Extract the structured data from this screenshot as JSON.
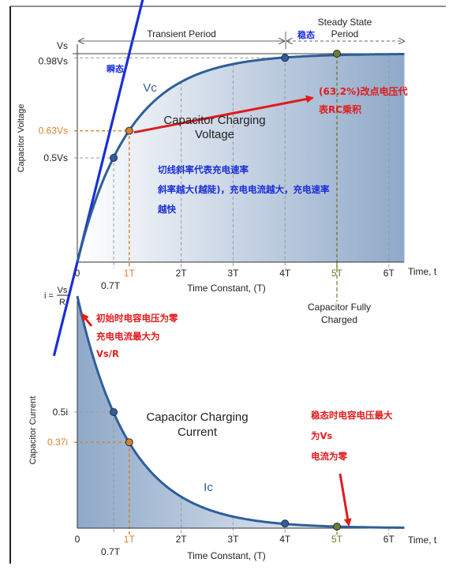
{
  "colors": {
    "curve": "#2d5f9a",
    "tangent": "#1a2fd6",
    "arrow_red": "#e11b1b",
    "note_red": "#e11b1b",
    "note_blue": "#1a2fd6",
    "orange": "#d9822b",
    "olive": "#6f7d2c",
    "grid": "#9a9a9a",
    "fill_light": "#ffffff",
    "fill_dark": "#8fa9c9"
  },
  "chart_data": [
    {
      "type": "line",
      "title": "Capacitor Charging Voltage",
      "title_line1": "Capacitor Charging",
      "title_line2": "Voltage",
      "xlabel": "Time Constant, (T)",
      "ylabel": "Capacitor Voltage",
      "x_axis_end_label": "Time, t",
      "xlim": [
        0,
        6.2
      ],
      "ylim": [
        0,
        1.0
      ],
      "x_ticks": [
        {
          "x": 0,
          "label": "0"
        },
        {
          "x": 1,
          "label": "1T",
          "highlight": "orange"
        },
        {
          "x": 2,
          "label": "2T"
        },
        {
          "x": 3,
          "label": "3T"
        },
        {
          "x": 4,
          "label": "4T"
        },
        {
          "x": 5,
          "label": "5T",
          "highlight": "olive"
        },
        {
          "x": 6,
          "label": "6T"
        }
      ],
      "extra_x_label": {
        "x": 0.7,
        "label": "0.7T"
      },
      "y_ticks": [
        {
          "y": 1.0,
          "label": "Vs"
        },
        {
          "y": 0.98,
          "label": "0.98Vs"
        },
        {
          "y": 0.63,
          "label": "0.63Vs",
          "highlight": "orange"
        },
        {
          "y": 0.5,
          "label": "0.5Vs"
        }
      ],
      "series": [
        {
          "name": "Vc",
          "function": "1 - exp(-x)"
        }
      ],
      "tangent": {
        "slope": 1,
        "intercept": 0
      },
      "points": [
        {
          "x": 0.7,
          "y": 0.5,
          "color": "#2d5f9a"
        },
        {
          "x": 1,
          "y": 0.63,
          "color": "#d9822b"
        },
        {
          "x": 4,
          "y": 0.98,
          "color": "#2d5f9a"
        },
        {
          "x": 5,
          "y": 1.0,
          "color": "#6f7d2c"
        }
      ],
      "regions": {
        "transient": "Transient Period",
        "steady_line1": "Steady State",
        "steady_line2": "Period",
        "steady_cn": "稳态"
      },
      "annotations": {
        "transient_cn": "瞬态",
        "arrow_note_line1": "(63.2%)改点电压代",
        "arrow_note_line2": "表RC乘积",
        "slope_note_line1": "切线斜率代表充电速率",
        "slope_note_line2": "斜率越大(越陡)，充电电流越大，充电速率",
        "slope_note_line3": "越快",
        "fully_charged_line1": "Capacitor Fully",
        "fully_charged_line2": "Charged"
      }
    },
    {
      "type": "line",
      "title": "Capacitor Charging Current",
      "title_line1": "Capacitor Charging",
      "title_line2": "Current",
      "xlabel": "Time Constant, (T)",
      "ylabel": "Capacitor Current",
      "x_axis_end_label": "Time, t",
      "xlim": [
        0,
        6.2
      ],
      "ylim": [
        0,
        1.0
      ],
      "x_ticks": [
        {
          "x": 0,
          "label": "0"
        },
        {
          "x": 1,
          "label": "1T",
          "highlight": "orange"
        },
        {
          "x": 2,
          "label": "2T"
        },
        {
          "x": 3,
          "label": "3T"
        },
        {
          "x": 4,
          "label": "4T"
        },
        {
          "x": 5,
          "label": "5T",
          "highlight": "olive"
        },
        {
          "x": 6,
          "label": "6T"
        }
      ],
      "extra_x_label": {
        "x": 0.7,
        "label": "0.7T"
      },
      "y_ticks": [
        {
          "y": 0.5,
          "label": "0.5i"
        },
        {
          "y": 0.37,
          "label": "0.37i",
          "highlight": "orange"
        }
      ],
      "i_formula": {
        "lhs": "i =",
        "num": "Vs",
        "den": "R"
      },
      "series": [
        {
          "name": "Ic",
          "function": "exp(-x)"
        }
      ],
      "points": [
        {
          "x": 0.7,
          "y": 0.5,
          "color": "#2d5f9a"
        },
        {
          "x": 1,
          "y": 0.37,
          "color": "#d9822b"
        },
        {
          "x": 4,
          "y": 0.02,
          "color": "#2d5f9a"
        },
        {
          "x": 5,
          "y": 0.007,
          "color": "#6f7d2c"
        }
      ],
      "annotations": {
        "start_note_line1": "初始时电容电压为零",
        "start_note_line2": "充电电流最大为",
        "start_note_line3": "Vs/R",
        "steady_note_line1": "稳态时电容电压最大",
        "steady_note_line2": "为Vs",
        "steady_note_line3": "电流为零"
      }
    }
  ]
}
